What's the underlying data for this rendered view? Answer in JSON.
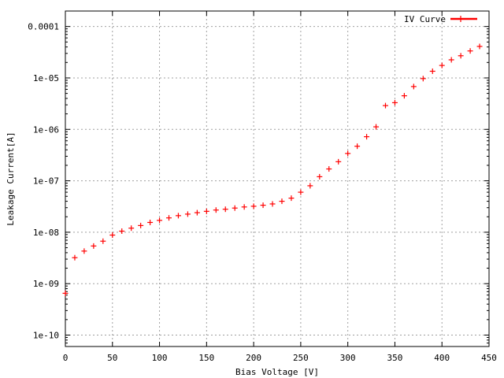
{
  "chart_data": {
    "type": "scatter",
    "title": "",
    "xlabel": "Bias Voltage [V]",
    "ylabel": "Leakage Current[A]",
    "xlim": [
      0,
      450
    ],
    "ylim": [
      6e-11,
      0.0002
    ],
    "yscale": "log",
    "grid": true,
    "legend_position": "top-right",
    "x_ticks": [
      {
        "value": 0,
        "label": "0"
      },
      {
        "value": 50,
        "label": "50"
      },
      {
        "value": 100,
        "label": "100"
      },
      {
        "value": 150,
        "label": "150"
      },
      {
        "value": 200,
        "label": "200"
      },
      {
        "value": 250,
        "label": "250"
      },
      {
        "value": 300,
        "label": "300"
      },
      {
        "value": 350,
        "label": "350"
      },
      {
        "value": 400,
        "label": "400"
      },
      {
        "value": 450,
        "label": "450"
      }
    ],
    "y_ticks": [
      {
        "value": 1e-10,
        "label": "1e-10"
      },
      {
        "value": 1e-09,
        "label": "1e-09"
      },
      {
        "value": 1e-08,
        "label": "1e-08"
      },
      {
        "value": 1e-07,
        "label": "1e-07"
      },
      {
        "value": 1e-06,
        "label": "1e-06"
      },
      {
        "value": 1e-05,
        "label": "1e-05"
      },
      {
        "value": 0.0001,
        "label": "0.0001"
      }
    ],
    "series": [
      {
        "name": "IV Curve",
        "color": "#ff0000",
        "marker": "plus",
        "x": [
          0,
          10,
          20,
          30,
          40,
          50,
          60,
          70,
          80,
          90,
          100,
          110,
          120,
          130,
          140,
          150,
          160,
          170,
          180,
          190,
          200,
          210,
          220,
          230,
          240,
          250,
          260,
          270,
          280,
          290,
          300,
          310,
          320,
          330,
          340,
          350,
          360,
          370,
          380,
          390,
          400,
          410,
          420,
          430,
          440
        ],
        "y": [
          6.5e-10,
          3.2e-09,
          4.3e-09,
          5.4e-09,
          6.7e-09,
          8.8e-09,
          1.05e-08,
          1.2e-08,
          1.35e-08,
          1.55e-08,
          1.7e-08,
          1.9e-08,
          2.1e-08,
          2.25e-08,
          2.4e-08,
          2.55e-08,
          2.7e-08,
          2.8e-08,
          2.95e-08,
          3.1e-08,
          3.2e-08,
          3.35e-08,
          3.55e-08,
          4e-08,
          4.6e-08,
          6e-08,
          8e-08,
          1.2e-07,
          1.7e-07,
          2.35e-07,
          3.4e-07,
          4.7e-07,
          7.2e-07,
          1.12e-06,
          2.9e-06,
          3.3e-06,
          4.5e-06,
          6.8e-06,
          9.7e-06,
          1.35e-05,
          1.75e-05,
          2.25e-05,
          2.7e-05,
          3.35e-05,
          4.1e-05
        ]
      }
    ]
  }
}
